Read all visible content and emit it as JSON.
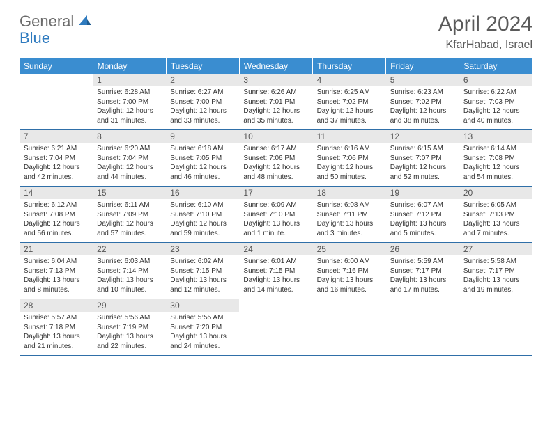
{
  "logo": {
    "text1": "General",
    "text2": "Blue"
  },
  "title": "April 2024",
  "location": "KfarHabad, Israel",
  "dows": [
    "Sunday",
    "Monday",
    "Tuesday",
    "Wednesday",
    "Thursday",
    "Friday",
    "Saturday"
  ],
  "colors": {
    "header_bg": "#3a8dd0",
    "header_text": "#ffffff",
    "band_bg": "#e8e8e8",
    "border": "#2f6fa8",
    "logo_grey": "#6b6b6b",
    "logo_blue": "#2f7bbf"
  },
  "weeks": [
    [
      {
        "n": "",
        "sr": "",
        "ss": "",
        "d1": "",
        "d2": ""
      },
      {
        "n": "1",
        "sr": "Sunrise: 6:28 AM",
        "ss": "Sunset: 7:00 PM",
        "d1": "Daylight: 12 hours",
        "d2": "and 31 minutes."
      },
      {
        "n": "2",
        "sr": "Sunrise: 6:27 AM",
        "ss": "Sunset: 7:00 PM",
        "d1": "Daylight: 12 hours",
        "d2": "and 33 minutes."
      },
      {
        "n": "3",
        "sr": "Sunrise: 6:26 AM",
        "ss": "Sunset: 7:01 PM",
        "d1": "Daylight: 12 hours",
        "d2": "and 35 minutes."
      },
      {
        "n": "4",
        "sr": "Sunrise: 6:25 AM",
        "ss": "Sunset: 7:02 PM",
        "d1": "Daylight: 12 hours",
        "d2": "and 37 minutes."
      },
      {
        "n": "5",
        "sr": "Sunrise: 6:23 AM",
        "ss": "Sunset: 7:02 PM",
        "d1": "Daylight: 12 hours",
        "d2": "and 38 minutes."
      },
      {
        "n": "6",
        "sr": "Sunrise: 6:22 AM",
        "ss": "Sunset: 7:03 PM",
        "d1": "Daylight: 12 hours",
        "d2": "and 40 minutes."
      }
    ],
    [
      {
        "n": "7",
        "sr": "Sunrise: 6:21 AM",
        "ss": "Sunset: 7:04 PM",
        "d1": "Daylight: 12 hours",
        "d2": "and 42 minutes."
      },
      {
        "n": "8",
        "sr": "Sunrise: 6:20 AM",
        "ss": "Sunset: 7:04 PM",
        "d1": "Daylight: 12 hours",
        "d2": "and 44 minutes."
      },
      {
        "n": "9",
        "sr": "Sunrise: 6:18 AM",
        "ss": "Sunset: 7:05 PM",
        "d1": "Daylight: 12 hours",
        "d2": "and 46 minutes."
      },
      {
        "n": "10",
        "sr": "Sunrise: 6:17 AM",
        "ss": "Sunset: 7:06 PM",
        "d1": "Daylight: 12 hours",
        "d2": "and 48 minutes."
      },
      {
        "n": "11",
        "sr": "Sunrise: 6:16 AM",
        "ss": "Sunset: 7:06 PM",
        "d1": "Daylight: 12 hours",
        "d2": "and 50 minutes."
      },
      {
        "n": "12",
        "sr": "Sunrise: 6:15 AM",
        "ss": "Sunset: 7:07 PM",
        "d1": "Daylight: 12 hours",
        "d2": "and 52 minutes."
      },
      {
        "n": "13",
        "sr": "Sunrise: 6:14 AM",
        "ss": "Sunset: 7:08 PM",
        "d1": "Daylight: 12 hours",
        "d2": "and 54 minutes."
      }
    ],
    [
      {
        "n": "14",
        "sr": "Sunrise: 6:12 AM",
        "ss": "Sunset: 7:08 PM",
        "d1": "Daylight: 12 hours",
        "d2": "and 56 minutes."
      },
      {
        "n": "15",
        "sr": "Sunrise: 6:11 AM",
        "ss": "Sunset: 7:09 PM",
        "d1": "Daylight: 12 hours",
        "d2": "and 57 minutes."
      },
      {
        "n": "16",
        "sr": "Sunrise: 6:10 AM",
        "ss": "Sunset: 7:10 PM",
        "d1": "Daylight: 12 hours",
        "d2": "and 59 minutes."
      },
      {
        "n": "17",
        "sr": "Sunrise: 6:09 AM",
        "ss": "Sunset: 7:10 PM",
        "d1": "Daylight: 13 hours",
        "d2": "and 1 minute."
      },
      {
        "n": "18",
        "sr": "Sunrise: 6:08 AM",
        "ss": "Sunset: 7:11 PM",
        "d1": "Daylight: 13 hours",
        "d2": "and 3 minutes."
      },
      {
        "n": "19",
        "sr": "Sunrise: 6:07 AM",
        "ss": "Sunset: 7:12 PM",
        "d1": "Daylight: 13 hours",
        "d2": "and 5 minutes."
      },
      {
        "n": "20",
        "sr": "Sunrise: 6:05 AM",
        "ss": "Sunset: 7:13 PM",
        "d1": "Daylight: 13 hours",
        "d2": "and 7 minutes."
      }
    ],
    [
      {
        "n": "21",
        "sr": "Sunrise: 6:04 AM",
        "ss": "Sunset: 7:13 PM",
        "d1": "Daylight: 13 hours",
        "d2": "and 8 minutes."
      },
      {
        "n": "22",
        "sr": "Sunrise: 6:03 AM",
        "ss": "Sunset: 7:14 PM",
        "d1": "Daylight: 13 hours",
        "d2": "and 10 minutes."
      },
      {
        "n": "23",
        "sr": "Sunrise: 6:02 AM",
        "ss": "Sunset: 7:15 PM",
        "d1": "Daylight: 13 hours",
        "d2": "and 12 minutes."
      },
      {
        "n": "24",
        "sr": "Sunrise: 6:01 AM",
        "ss": "Sunset: 7:15 PM",
        "d1": "Daylight: 13 hours",
        "d2": "and 14 minutes."
      },
      {
        "n": "25",
        "sr": "Sunrise: 6:00 AM",
        "ss": "Sunset: 7:16 PM",
        "d1": "Daylight: 13 hours",
        "d2": "and 16 minutes."
      },
      {
        "n": "26",
        "sr": "Sunrise: 5:59 AM",
        "ss": "Sunset: 7:17 PM",
        "d1": "Daylight: 13 hours",
        "d2": "and 17 minutes."
      },
      {
        "n": "27",
        "sr": "Sunrise: 5:58 AM",
        "ss": "Sunset: 7:17 PM",
        "d1": "Daylight: 13 hours",
        "d2": "and 19 minutes."
      }
    ],
    [
      {
        "n": "28",
        "sr": "Sunrise: 5:57 AM",
        "ss": "Sunset: 7:18 PM",
        "d1": "Daylight: 13 hours",
        "d2": "and 21 minutes."
      },
      {
        "n": "29",
        "sr": "Sunrise: 5:56 AM",
        "ss": "Sunset: 7:19 PM",
        "d1": "Daylight: 13 hours",
        "d2": "and 22 minutes."
      },
      {
        "n": "30",
        "sr": "Sunrise: 5:55 AM",
        "ss": "Sunset: 7:20 PM",
        "d1": "Daylight: 13 hours",
        "d2": "and 24 minutes."
      },
      {
        "n": "",
        "sr": "",
        "ss": "",
        "d1": "",
        "d2": ""
      },
      {
        "n": "",
        "sr": "",
        "ss": "",
        "d1": "",
        "d2": ""
      },
      {
        "n": "",
        "sr": "",
        "ss": "",
        "d1": "",
        "d2": ""
      },
      {
        "n": "",
        "sr": "",
        "ss": "",
        "d1": "",
        "d2": ""
      }
    ]
  ]
}
